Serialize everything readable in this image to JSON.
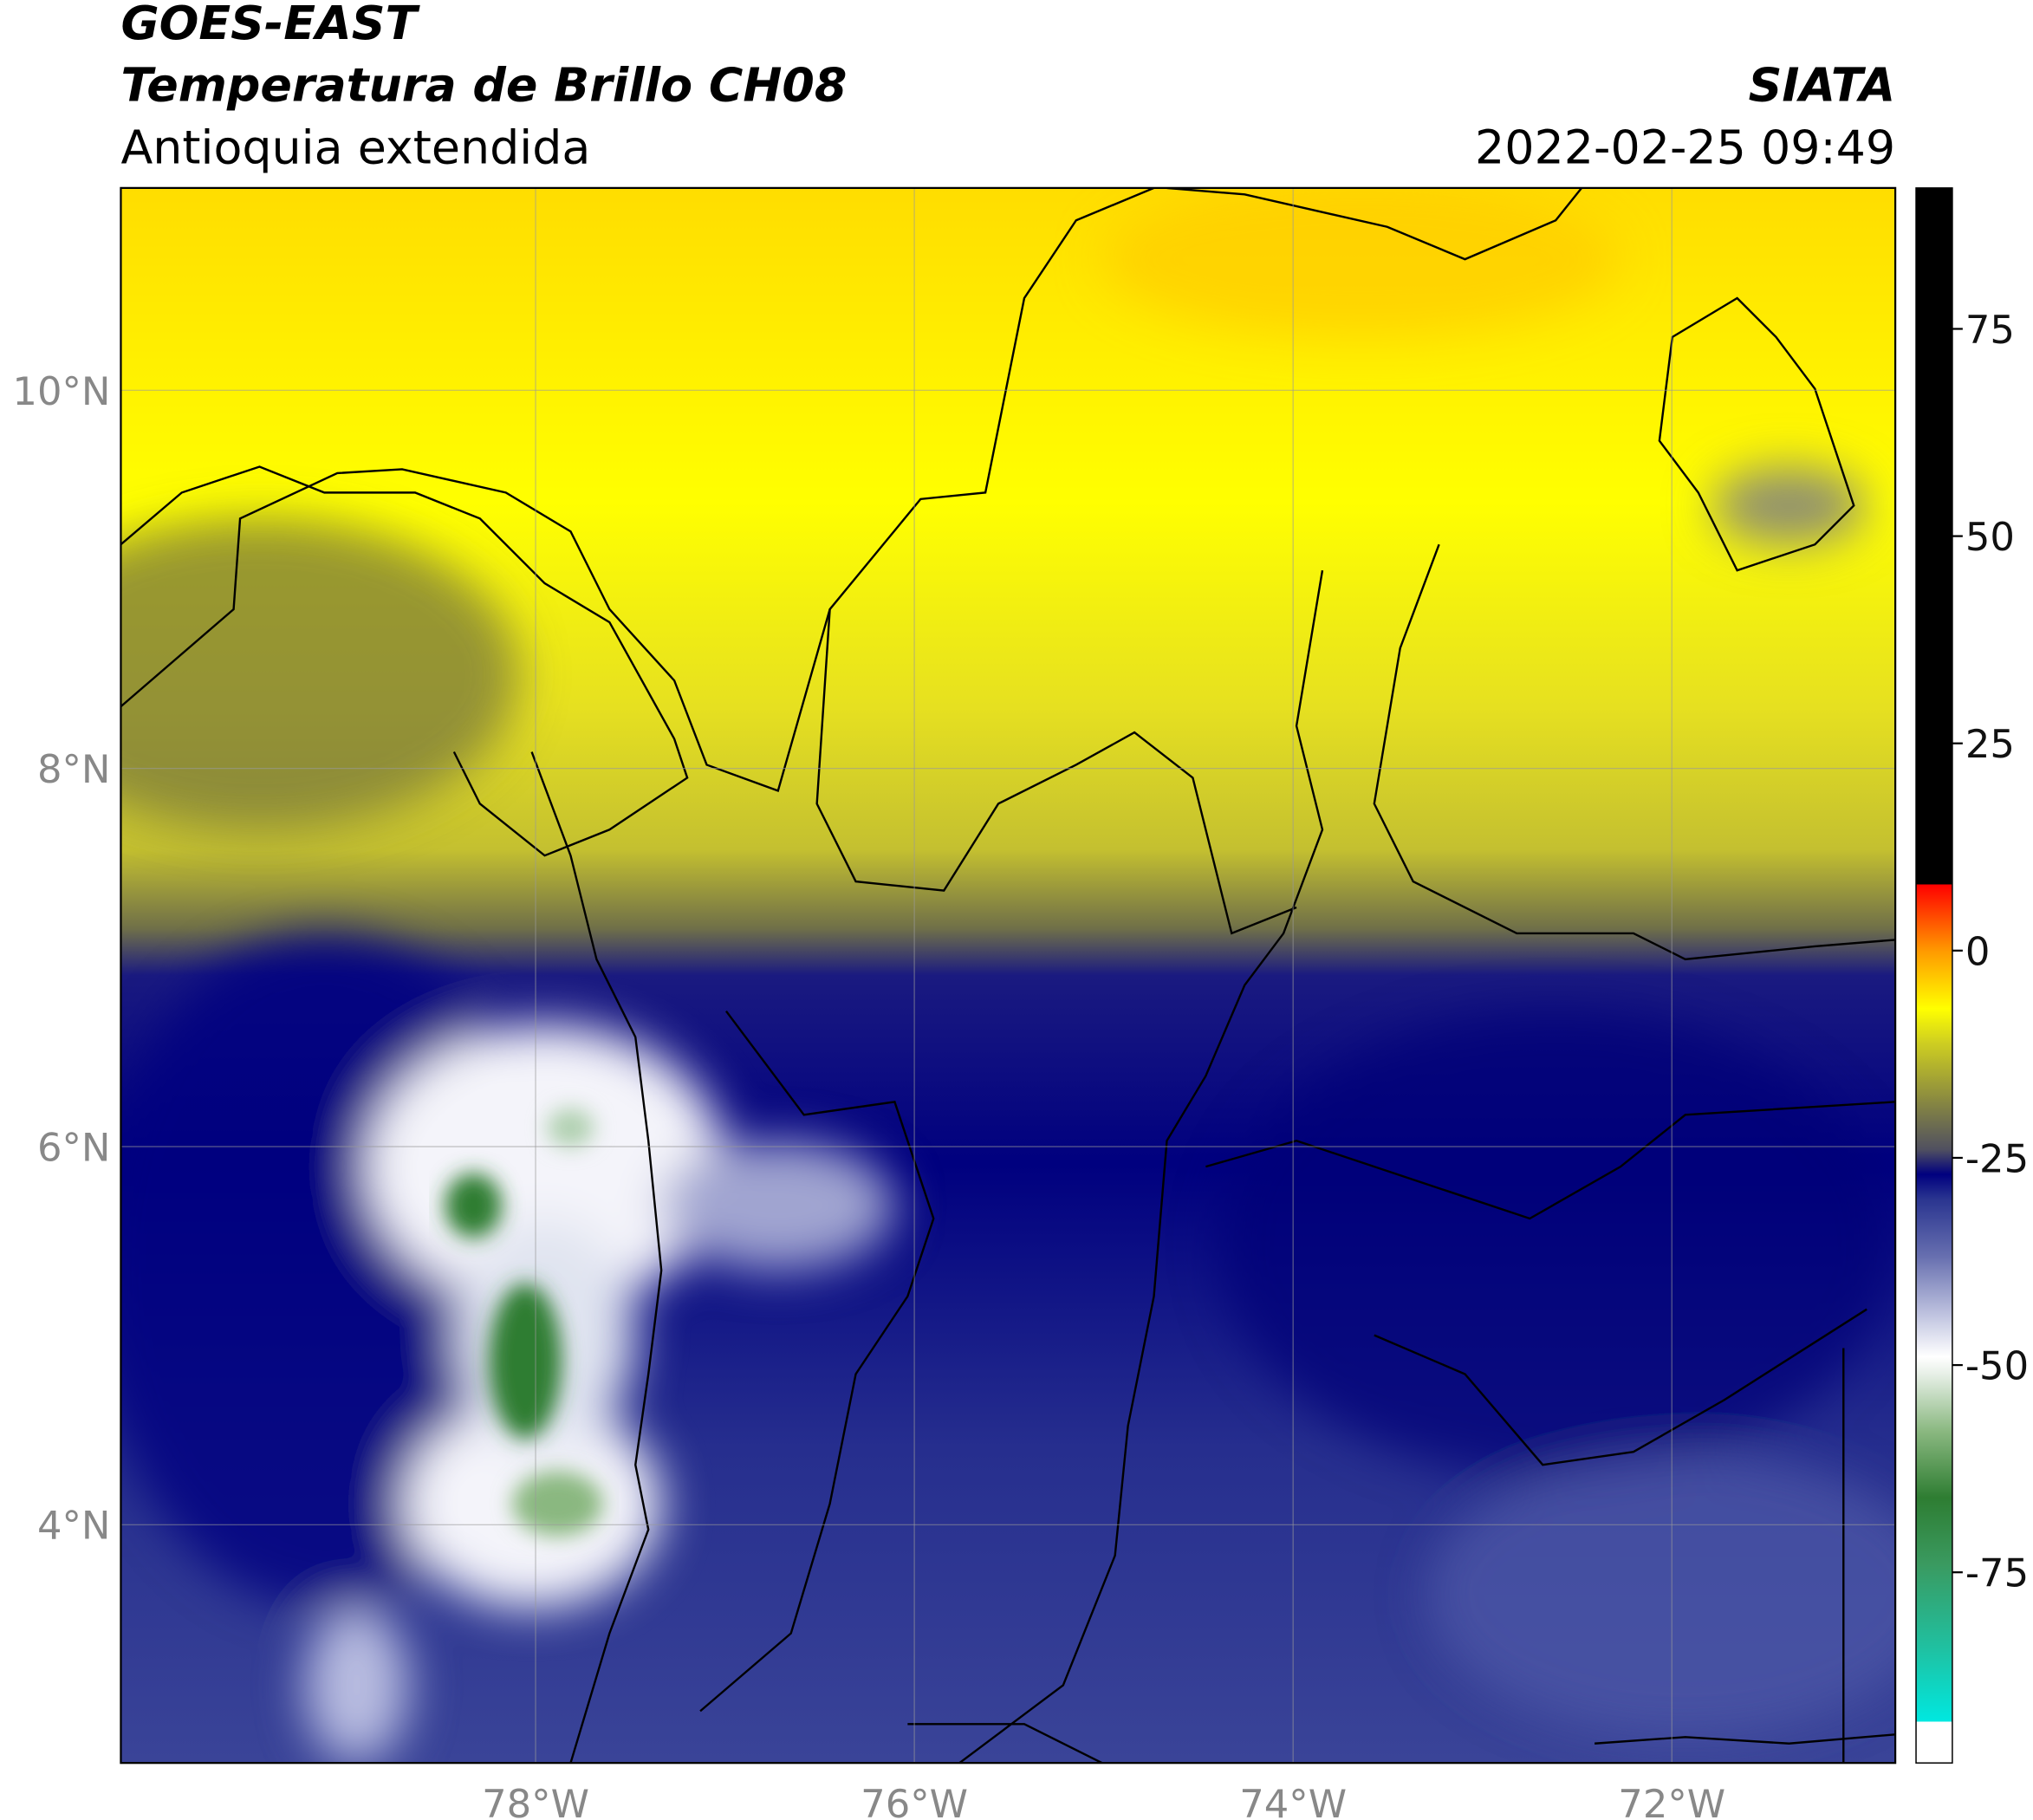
{
  "header": {
    "title": "GOES-EAST",
    "subtitle": "Temperatura de Brillo CH08",
    "region": "Antioquia extendida",
    "source": "SIATA",
    "datetime": "2022-02-25 09:49"
  },
  "map": {
    "xlim": [
      -80.19,
      -70.82
    ],
    "ylim": [
      2.74,
      11.07
    ],
    "xticks": [
      {
        "value": -78,
        "label": "78°W"
      },
      {
        "value": -76,
        "label": "76°W"
      },
      {
        "value": -74,
        "label": "74°W"
      },
      {
        "value": -72,
        "label": "72°W"
      }
    ],
    "yticks": [
      {
        "value": 4,
        "label": "4°N"
      },
      {
        "value": 6,
        "label": "6°N"
      },
      {
        "value": 8,
        "label": "8°N"
      },
      {
        "value": 10,
        "label": "10°N"
      }
    ],
    "grid": true
  },
  "colorbar": {
    "range": [
      -98,
      92
    ],
    "ticks": [
      75,
      50,
      25,
      0,
      -25,
      -50,
      -75
    ],
    "stops": [
      {
        "value": -98,
        "color": "#ffffff"
      },
      {
        "value": -93,
        "color": "#ffffff"
      },
      {
        "value": -93,
        "color": "#00e8e0"
      },
      {
        "value": -84,
        "color": "#20c0a0"
      },
      {
        "value": -74,
        "color": "#3a9a60"
      },
      {
        "value": -66,
        "color": "#2e7d32"
      },
      {
        "value": -58,
        "color": "#8ab880"
      },
      {
        "value": -51,
        "color": "#e8f0e8"
      },
      {
        "value": -49,
        "color": "#ffffff"
      },
      {
        "value": -44,
        "color": "#c0c4e0"
      },
      {
        "value": -37,
        "color": "#6870b0"
      },
      {
        "value": -30,
        "color": "#2a3590"
      },
      {
        "value": -27,
        "color": "#00007f"
      },
      {
        "value": -24,
        "color": "#505060"
      },
      {
        "value": -18,
        "color": "#8a8a40"
      },
      {
        "value": -11,
        "color": "#d0d020"
      },
      {
        "value": -7,
        "color": "#ffff00"
      },
      {
        "value": 0,
        "color": "#ff9900"
      },
      {
        "value": 8,
        "color": "#ff0000"
      },
      {
        "value": 8,
        "color": "#000000"
      },
      {
        "value": 92,
        "color": "#000000"
      }
    ]
  }
}
